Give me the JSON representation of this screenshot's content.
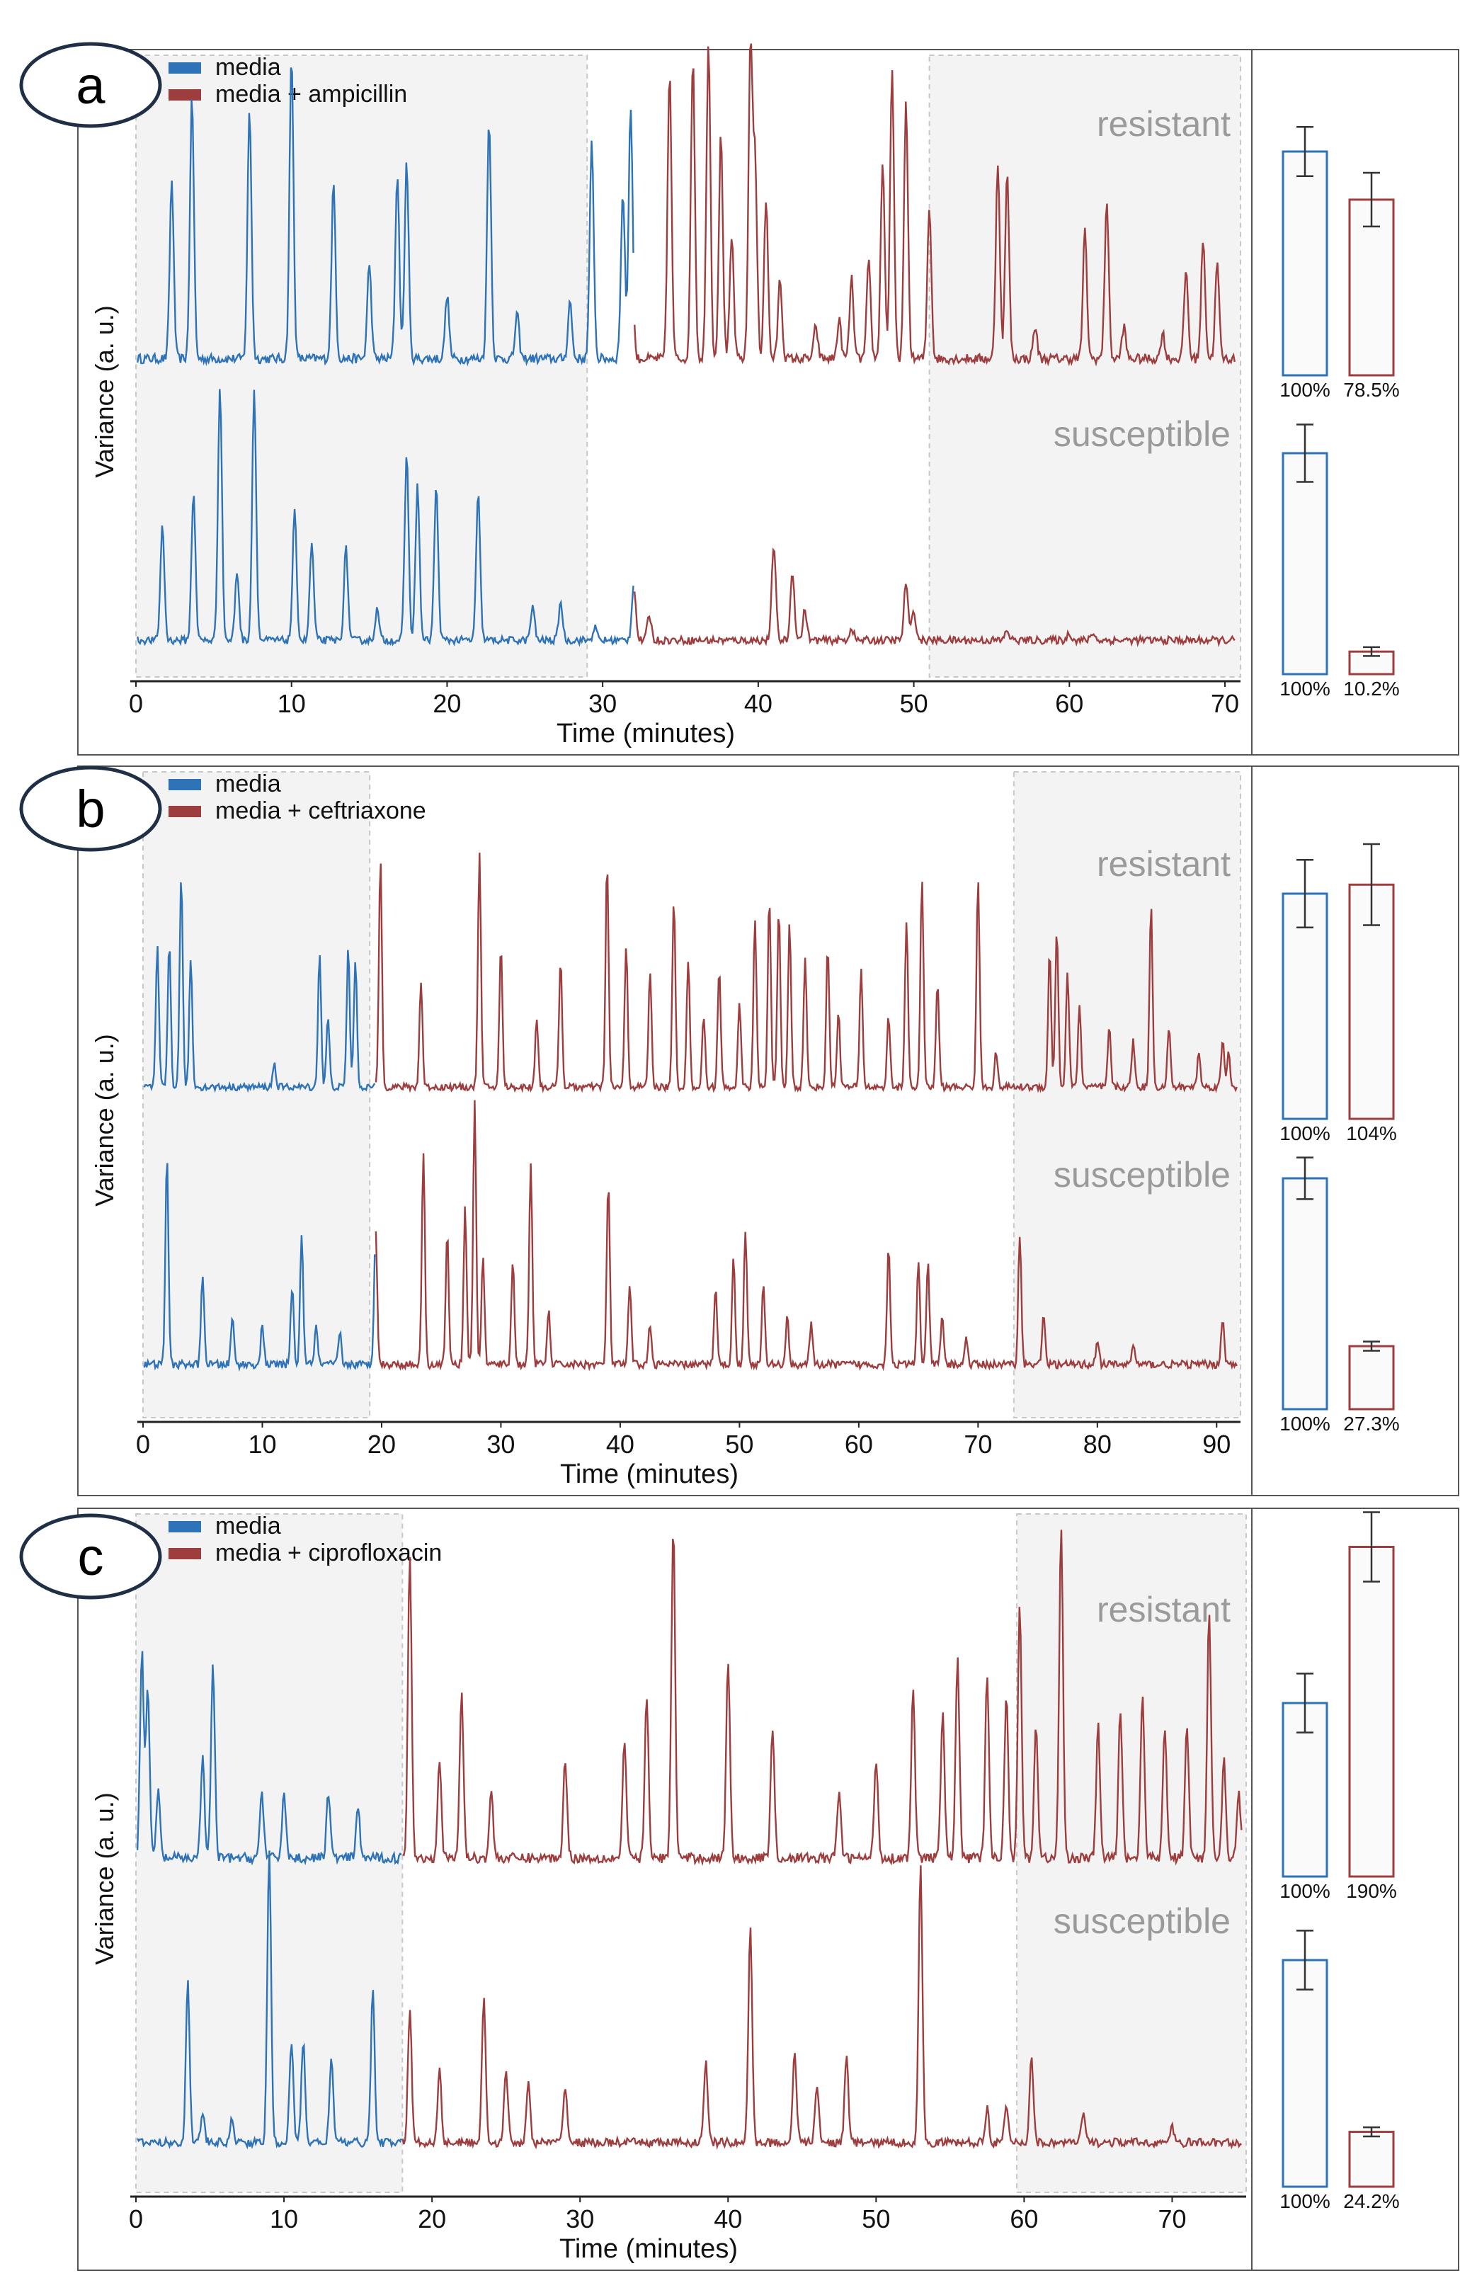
{
  "chart_data": [
    {
      "panel": "a",
      "type": "line",
      "xlabel": "Time (minutes)",
      "ylabel": "Variance (a. u.)",
      "xlim": [
        0,
        71
      ],
      "xticks": [
        0,
        10,
        20,
        30,
        40,
        50,
        60,
        70
      ],
      "switch_time": 32,
      "shaded_regions": [
        [
          0,
          29
        ],
        [
          51,
          71
        ]
      ],
      "legend": [
        {
          "name": "media",
          "color": "#2e72b8"
        },
        {
          "name": "media + ampicillin",
          "color": "#9e3d3d"
        }
      ],
      "tracks": [
        {
          "label": "resistant",
          "media_peaks": [
            [
              2.3,
              0.56
            ],
            [
              3.6,
              0.82
            ],
            [
              7.3,
              0.78
            ],
            [
              10.0,
              0.95
            ],
            [
              12.7,
              0.55
            ],
            [
              15.0,
              0.3
            ],
            [
              16.8,
              0.58
            ],
            [
              17.4,
              0.62
            ],
            [
              20.0,
              0.2
            ],
            [
              22.7,
              0.75
            ],
            [
              24.5,
              0.14
            ],
            [
              27.9,
              0.18
            ],
            [
              29.3,
              0.68
            ],
            [
              31.3,
              0.52
            ],
            [
              31.8,
              0.8
            ]
          ],
          "treated_peaks": [
            [
              34.3,
              0.9
            ],
            [
              35.8,
              0.95
            ],
            [
              36.8,
              1.0
            ],
            [
              37.6,
              0.7
            ],
            [
              38.3,
              0.38
            ],
            [
              39.5,
              0.98
            ],
            [
              39.8,
              0.6
            ],
            [
              40.5,
              0.5
            ],
            [
              41.4,
              0.25
            ],
            [
              43.7,
              0.1
            ],
            [
              45.2,
              0.12
            ],
            [
              46.0,
              0.25
            ],
            [
              47.1,
              0.3
            ],
            [
              48.0,
              0.62
            ],
            [
              48.6,
              0.9
            ],
            [
              49.5,
              0.8
            ],
            [
              51.0,
              0.48
            ],
            [
              55.4,
              0.62
            ],
            [
              56.0,
              0.58
            ],
            [
              57.8,
              0.1
            ],
            [
              61.0,
              0.4
            ],
            [
              62.4,
              0.5
            ],
            [
              63.5,
              0.1
            ],
            [
              66.0,
              0.08
            ],
            [
              67.5,
              0.28
            ],
            [
              68.6,
              0.38
            ],
            [
              69.5,
              0.3
            ]
          ],
          "bar": {
            "values": [
              100,
              78.5
            ],
            "labels": [
              "100%",
              "78.5%"
            ],
            "errors": [
              11,
              12
            ]
          }
        },
        {
          "label": "susceptible",
          "media_peaks": [
            [
              1.7,
              0.45
            ],
            [
              3.7,
              0.58
            ],
            [
              5.4,
              1.0
            ],
            [
              6.5,
              0.27
            ],
            [
              7.6,
              0.98
            ],
            [
              10.2,
              0.5
            ],
            [
              11.3,
              0.38
            ],
            [
              13.5,
              0.36
            ],
            [
              15.5,
              0.12
            ],
            [
              17.4,
              0.73
            ],
            [
              18.1,
              0.61
            ],
            [
              19.3,
              0.6
            ],
            [
              22.0,
              0.57
            ],
            [
              25.5,
              0.13
            ],
            [
              27.3,
              0.15
            ],
            [
              29.5,
              0.05
            ]
          ],
          "treated_peaks": [
            [
              32.0,
              0.22
            ],
            [
              33.0,
              0.1
            ],
            [
              41.0,
              0.38
            ],
            [
              42.2,
              0.27
            ],
            [
              43.0,
              0.12
            ],
            [
              46.0,
              0.05
            ],
            [
              49.5,
              0.23
            ],
            [
              50.0,
              0.12
            ],
            [
              56.0,
              0.04
            ],
            [
              60.0,
              0.03
            ],
            [
              61.5,
              0.03
            ]
          ],
          "bar": {
            "values": [
              100,
              10.2
            ],
            "labels": [
              "100%",
              "10.2%"
            ],
            "errors": [
              13,
              2
            ]
          }
        }
      ],
      "track_labels": [
        "resistant",
        "susceptible"
      ]
    },
    {
      "panel": "b",
      "type": "line",
      "xlabel": "Time (minutes)",
      "ylabel": "Variance (a. u.)",
      "xlim": [
        0,
        92
      ],
      "xticks": [
        0,
        10,
        20,
        30,
        40,
        50,
        60,
        70,
        80,
        90
      ],
      "switch_time": 19.5,
      "shaded_regions": [
        [
          0,
          19
        ],
        [
          73,
          92
        ]
      ],
      "legend": [
        {
          "name": "media",
          "color": "#2e72b8"
        },
        {
          "name": "media + ceftriaxone",
          "color": "#9e3d3d"
        }
      ],
      "tracks": [
        {
          "label": "resistant",
          "media_peaks": [
            [
              1.2,
              0.6
            ],
            [
              2.2,
              0.62
            ],
            [
              3.2,
              0.92
            ],
            [
              4.0,
              0.55
            ],
            [
              11.0,
              0.1
            ],
            [
              14.8,
              0.58
            ],
            [
              15.5,
              0.3
            ],
            [
              17.2,
              0.6
            ],
            [
              17.8,
              0.55
            ]
          ],
          "treated_peaks": [
            [
              19.9,
              0.98
            ],
            [
              23.3,
              0.45
            ],
            [
              28.2,
              1.0
            ],
            [
              30.0,
              0.6
            ],
            [
              33.0,
              0.3
            ],
            [
              35.0,
              0.55
            ],
            [
              38.9,
              0.96
            ],
            [
              40.5,
              0.6
            ],
            [
              42.5,
              0.5
            ],
            [
              44.5,
              0.8
            ],
            [
              45.7,
              0.55
            ],
            [
              47.0,
              0.3
            ],
            [
              48.3,
              0.5
            ],
            [
              50.0,
              0.35
            ],
            [
              51.3,
              0.72
            ],
            [
              52.5,
              0.82
            ],
            [
              53.3,
              0.75
            ],
            [
              54.2,
              0.7
            ],
            [
              55.5,
              0.55
            ],
            [
              57.4,
              0.6
            ],
            [
              58.3,
              0.32
            ],
            [
              60.2,
              0.5
            ],
            [
              62.5,
              0.3
            ],
            [
              64.0,
              0.72
            ],
            [
              65.3,
              0.9
            ],
            [
              66.6,
              0.45
            ],
            [
              70.0,
              0.9
            ],
            [
              71.5,
              0.15
            ],
            [
              76.0,
              0.58
            ],
            [
              76.6,
              0.68
            ],
            [
              77.5,
              0.5
            ],
            [
              78.5,
              0.35
            ],
            [
              81.0,
              0.25
            ],
            [
              83.0,
              0.2
            ],
            [
              84.5,
              0.78
            ],
            [
              86.0,
              0.25
            ],
            [
              88.5,
              0.15
            ],
            [
              90.5,
              0.2
            ],
            [
              91.0,
              0.15
            ]
          ],
          "bar": {
            "values": [
              100,
              104
            ],
            "labels": [
              "100%",
              "104%"
            ],
            "errors": [
              15,
              18
            ]
          }
        },
        {
          "label": "susceptible",
          "media_peaks": [
            [
              2.0,
              0.8
            ],
            [
              5.0,
              0.35
            ],
            [
              7.5,
              0.18
            ],
            [
              10.0,
              0.15
            ],
            [
              12.5,
              0.3
            ],
            [
              13.3,
              0.5
            ],
            [
              14.5,
              0.15
            ],
            [
              16.5,
              0.12
            ],
            [
              19.5,
              0.53
            ]
          ],
          "treated_peaks": [
            [
              23.5,
              0.82
            ],
            [
              25.5,
              0.5
            ],
            [
              27.0,
              0.6
            ],
            [
              27.8,
              1.0
            ],
            [
              28.5,
              0.4
            ],
            [
              31.0,
              0.4
            ],
            [
              32.5,
              0.78
            ],
            [
              34.0,
              0.2
            ],
            [
              39.0,
              0.7
            ],
            [
              40.8,
              0.3
            ],
            [
              42.5,
              0.15
            ],
            [
              48.0,
              0.3
            ],
            [
              49.5,
              0.4
            ],
            [
              50.5,
              0.52
            ],
            [
              52.0,
              0.3
            ],
            [
              54.0,
              0.18
            ],
            [
              56.0,
              0.15
            ],
            [
              62.5,
              0.46
            ],
            [
              65.0,
              0.4
            ],
            [
              65.8,
              0.38
            ],
            [
              67.0,
              0.18
            ],
            [
              69.0,
              0.1
            ],
            [
              73.5,
              0.5
            ],
            [
              75.5,
              0.2
            ],
            [
              80.0,
              0.1
            ],
            [
              83.0,
              0.08
            ],
            [
              90.5,
              0.18
            ]
          ],
          "bar": {
            "values": [
              100,
              27.3
            ],
            "labels": [
              "100%",
              "27.3%"
            ],
            "errors": [
              9,
              2
            ]
          }
        }
      ],
      "track_labels": [
        "resistant",
        "susceptible"
      ]
    },
    {
      "panel": "c",
      "type": "line",
      "xlabel": "Time (minutes)",
      "ylabel": "Variance (a. u.)",
      "xlim": [
        0,
        75
      ],
      "xticks": [
        0,
        10,
        20,
        30,
        40,
        50,
        60,
        70
      ],
      "switch_time": 18,
      "shaded_regions": [
        [
          0,
          18
        ],
        [
          59.5,
          75
        ]
      ],
      "legend": [
        {
          "name": "media",
          "color": "#2e72b8"
        },
        {
          "name": "media + ciprofloxacin",
          "color": "#9e3d3d"
        }
      ],
      "tracks": [
        {
          "label": "resistant",
          "media_peaks": [
            [
              0.4,
              0.62
            ],
            [
              0.8,
              0.5
            ],
            [
              1.5,
              0.2
            ],
            [
              4.5,
              0.3
            ],
            [
              5.2,
              0.58
            ],
            [
              8.5,
              0.2
            ],
            [
              10.0,
              0.2
            ],
            [
              13.0,
              0.2
            ],
            [
              15.0,
              0.15
            ]
          ],
          "treated_peaks": [
            [
              18.5,
              0.9
            ],
            [
              20.5,
              0.3
            ],
            [
              22.0,
              0.5
            ],
            [
              24.0,
              0.2
            ],
            [
              29.0,
              0.3
            ],
            [
              33.0,
              0.35
            ],
            [
              34.5,
              0.48
            ],
            [
              36.3,
              1.0
            ],
            [
              40.0,
              0.6
            ],
            [
              43.0,
              0.4
            ],
            [
              47.5,
              0.2
            ],
            [
              50.0,
              0.3
            ],
            [
              52.5,
              0.5
            ],
            [
              54.5,
              0.45
            ],
            [
              55.5,
              0.6
            ],
            [
              57.5,
              0.55
            ],
            [
              58.8,
              0.5
            ],
            [
              59.7,
              0.75
            ],
            [
              60.8,
              0.4
            ],
            [
              62.5,
              1.0
            ],
            [
              65.0,
              0.4
            ],
            [
              66.5,
              0.45
            ],
            [
              68.0,
              0.5
            ],
            [
              69.5,
              0.4
            ],
            [
              71.0,
              0.4
            ],
            [
              72.5,
              0.75
            ],
            [
              73.5,
              0.3
            ],
            [
              74.5,
              0.2
            ]
          ],
          "bar": {
            "values": [
              100,
              190
            ],
            "labels": [
              "100%",
              "190%"
            ],
            "errors": [
              17,
              20
            ]
          }
        },
        {
          "label": "susceptible",
          "media_peaks": [
            [
              3.5,
              0.55
            ],
            [
              4.5,
              0.1
            ],
            [
              6.5,
              0.08
            ],
            [
              9.0,
              1.0
            ],
            [
              10.5,
              0.35
            ],
            [
              11.3,
              0.35
            ],
            [
              13.2,
              0.3
            ],
            [
              16.0,
              0.52
            ]
          ],
          "treated_peaks": [
            [
              18.5,
              0.45
            ],
            [
              20.5,
              0.25
            ],
            [
              23.5,
              0.5
            ],
            [
              25.0,
              0.25
            ],
            [
              26.5,
              0.2
            ],
            [
              29.0,
              0.2
            ],
            [
              38.5,
              0.28
            ],
            [
              41.5,
              0.75
            ],
            [
              44.5,
              0.32
            ],
            [
              46.0,
              0.2
            ],
            [
              48.0,
              0.3
            ],
            [
              53.0,
              0.95
            ],
            [
              57.5,
              0.12
            ],
            [
              58.8,
              0.12
            ],
            [
              60.5,
              0.3
            ],
            [
              64.0,
              0.1
            ],
            [
              70.0,
              0.05
            ]
          ],
          "bar": {
            "values": [
              100,
              24.2
            ],
            "labels": [
              "100%",
              "24.2%"
            ],
            "errors": [
              13,
              2
            ]
          }
        }
      ],
      "track_labels": [
        "resistant",
        "susceptible"
      ]
    }
  ]
}
